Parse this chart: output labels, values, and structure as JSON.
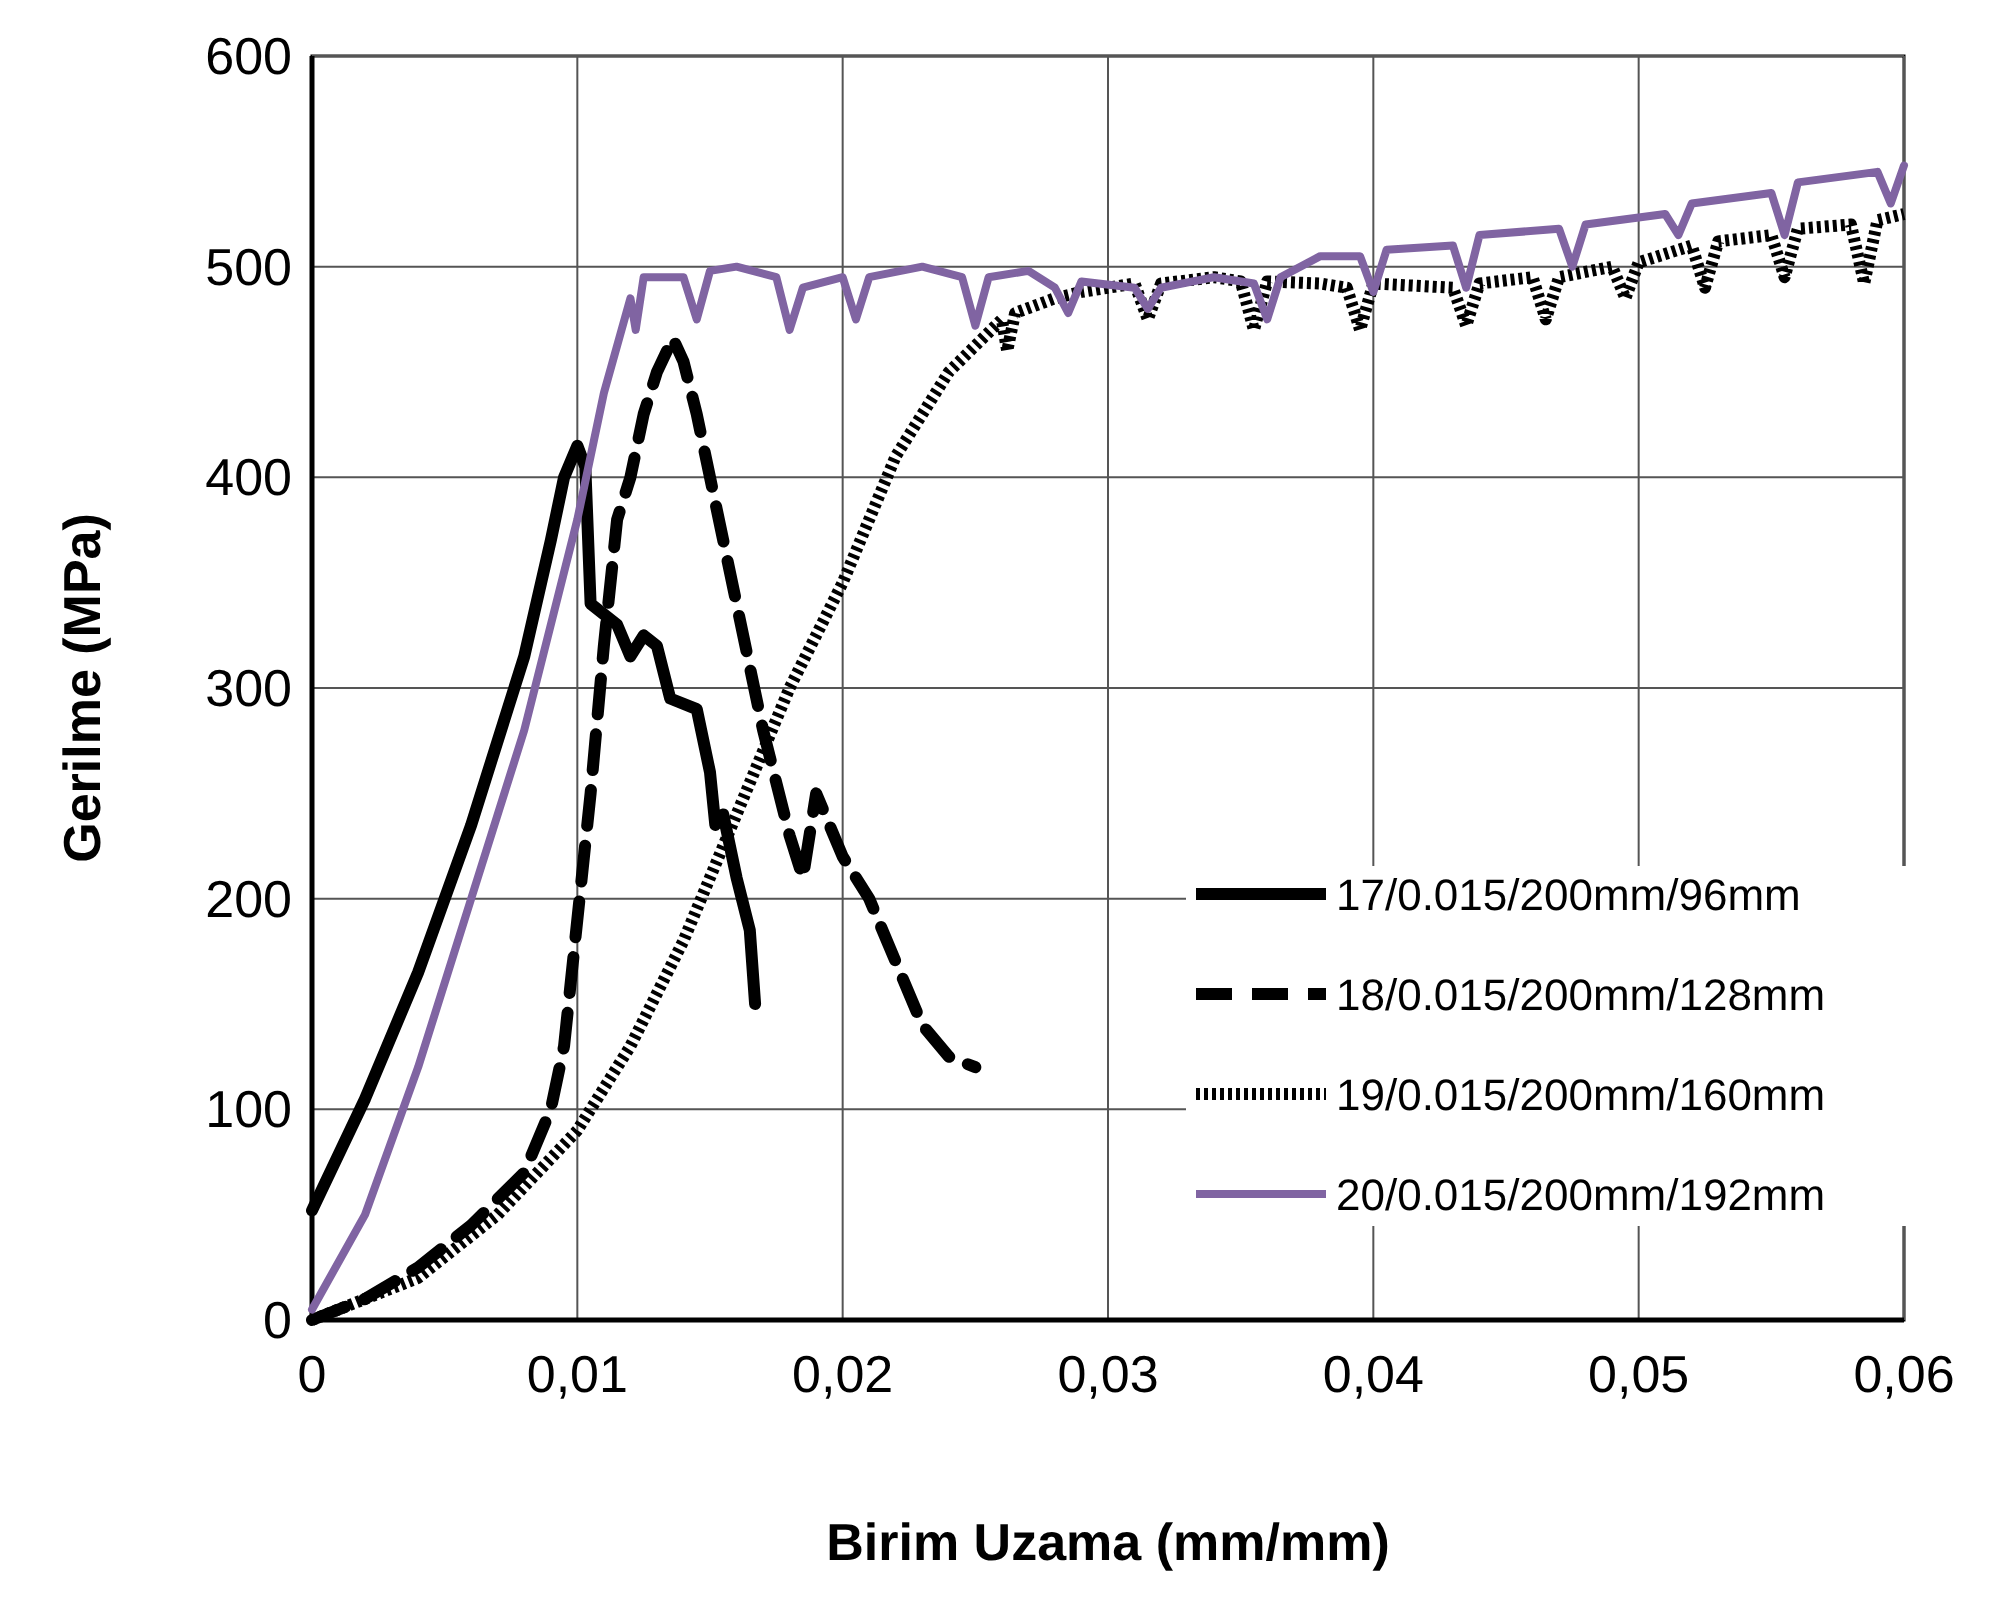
{
  "chart_data": {
    "type": "line",
    "xlabel": "Birim Uzama (mm/mm)",
    "ylabel": "Gerilme (MPa)",
    "xlim": [
      0,
      0.06
    ],
    "ylim": [
      0,
      600
    ],
    "xticks": [
      0,
      {
        "value": 0.01,
        "label": "0,01"
      },
      {
        "value": 0.02,
        "label": "0,02"
      },
      {
        "value": 0.03,
        "label": "0,03"
      },
      {
        "value": 0.04,
        "label": "0,04"
      },
      {
        "value": 0.05,
        "label": "0,05"
      },
      {
        "value": 0.06,
        "label": "0,06"
      }
    ],
    "yticks": [
      0,
      100,
      200,
      300,
      400,
      500,
      600
    ],
    "grid": true,
    "legend": "right",
    "marker": "none",
    "series": [
      {
        "name": "17/0.015/200mm/96mm",
        "color": "#000000",
        "line_style": "solid",
        "x": [
          0,
          0.002,
          0.004,
          0.006,
          0.008,
          0.009,
          0.0095,
          0.01,
          0.0103,
          0.0105,
          0.011,
          0.0115,
          0.012,
          0.0125,
          0.013,
          0.0135,
          0.0145,
          0.015,
          0.0152,
          0.0155,
          0.016,
          0.0165,
          0.0167
        ],
        "values": [
          52,
          105,
          165,
          235,
          315,
          370,
          400,
          415,
          405,
          340,
          335,
          330,
          315,
          325,
          320,
          295,
          290,
          260,
          235,
          240,
          210,
          185,
          150
        ]
      },
      {
        "name": "18/0.015/200mm/128mm",
        "color": "#000000",
        "line_style": "dashed",
        "x": [
          0,
          0.002,
          0.004,
          0.006,
          0.008,
          0.009,
          0.0095,
          0.01,
          0.0105,
          0.011,
          0.0115,
          0.012,
          0.0125,
          0.013,
          0.0136,
          0.014,
          0.0145,
          0.015,
          0.016,
          0.017,
          0.018,
          0.0185,
          0.019,
          0.02,
          0.021,
          0.022,
          0.023,
          0.024,
          0.025
        ],
        "values": [
          0,
          10,
          25,
          45,
          70,
          100,
          130,
          190,
          250,
          320,
          380,
          400,
          430,
          450,
          466,
          455,
          430,
          400,
          340,
          280,
          230,
          210,
          250,
          220,
          200,
          170,
          140,
          125,
          120
        ]
      },
      {
        "name": "19/0.015/200mm/160mm",
        "color": "#000000",
        "line_style": "dotted",
        "x": [
          0,
          0.004,
          0.007,
          0.01,
          0.012,
          0.014,
          0.016,
          0.018,
          0.02,
          0.022,
          0.024,
          0.026,
          0.0262,
          0.0265,
          0.028,
          0.029,
          0.03,
          0.031,
          0.0315,
          0.032,
          0.034,
          0.035,
          0.0355,
          0.036,
          0.038,
          0.039,
          0.0395,
          0.04,
          0.043,
          0.0435,
          0.044,
          0.046,
          0.0465,
          0.047,
          0.049,
          0.0495,
          0.05,
          0.052,
          0.0525,
          0.053,
          0.055,
          0.0555,
          0.056,
          0.058,
          0.0585,
          0.059,
          0.06
        ],
        "values": [
          0,
          20,
          50,
          90,
          130,
          180,
          240,
          300,
          350,
          410,
          450,
          475,
          460,
          478,
          485,
          488,
          490,
          492,
          475,
          492,
          495,
          493,
          470,
          493,
          492,
          490,
          470,
          492,
          490,
          472,
          492,
          495,
          475,
          495,
          500,
          485,
          502,
          510,
          490,
          512,
          515,
          495,
          518,
          520,
          492,
          522,
          525
        ]
      },
      {
        "name": "20/0.015/200mm/192mm",
        "color": "#8064a2",
        "line_style": "solid",
        "x": [
          0,
          0.002,
          0.004,
          0.006,
          0.008,
          0.01,
          0.011,
          0.012,
          0.0122,
          0.0125,
          0.014,
          0.0145,
          0.015,
          0.016,
          0.0175,
          0.018,
          0.0185,
          0.02,
          0.0205,
          0.021,
          0.023,
          0.0245,
          0.025,
          0.0255,
          0.027,
          0.028,
          0.0285,
          0.029,
          0.031,
          0.0315,
          0.032,
          0.034,
          0.0355,
          0.036,
          0.0365,
          0.038,
          0.0395,
          0.04,
          0.0405,
          0.043,
          0.0435,
          0.044,
          0.047,
          0.0475,
          0.048,
          0.051,
          0.0515,
          0.052,
          0.055,
          0.0555,
          0.056,
          0.059,
          0.0595,
          0.06
        ],
        "values": [
          5,
          50,
          120,
          200,
          280,
          380,
          440,
          485,
          470,
          495,
          495,
          475,
          498,
          500,
          495,
          470,
          490,
          495,
          475,
          495,
          500,
          495,
          472,
          495,
          498,
          490,
          478,
          493,
          490,
          480,
          490,
          495,
          492,
          475,
          495,
          505,
          505,
          488,
          508,
          510,
          490,
          515,
          518,
          500,
          520,
          525,
          515,
          530,
          535,
          515,
          540,
          545,
          530,
          548
        ]
      }
    ]
  }
}
